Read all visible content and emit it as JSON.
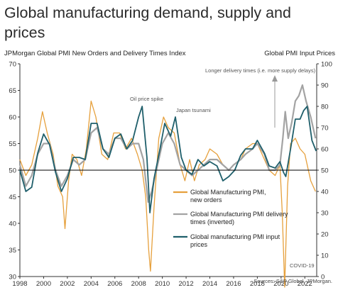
{
  "title": "Global manufacturing demand, supply and prices",
  "left_axis_title": "JPMorgan Global PMI New Orders and Delivery Times Index",
  "right_axis_title": "Global PMI Input Prices",
  "source": "Sources: S&P Global, JPMorgan.",
  "annotations": {
    "longer_delivery": "Longer delivery times (i.e. more supply delays)",
    "oil_spike": "Oil price spike",
    "japan_tsunami": "Japan tsunami",
    "covid": "COVID-19"
  },
  "colors": {
    "new_orders": "#E6A03C",
    "delivery_times": "#A3A3A3",
    "input_prices": "#1F5F6B",
    "axis": "#333333",
    "reference_line": "#000000"
  },
  "chart_data": {
    "type": "line",
    "x_unit": "year",
    "xlim": [
      1998,
      2023
    ],
    "x_ticks": [
      "1998",
      "2000",
      "2002",
      "2004",
      "2006",
      "2008",
      "2010",
      "2012",
      "2014",
      "2016",
      "2018",
      "2020",
      "2022"
    ],
    "left_axis": {
      "ylim": [
        30,
        70
      ],
      "ticks": [
        "30",
        "35",
        "40",
        "45",
        "50",
        "55",
        "60",
        "65",
        "70"
      ]
    },
    "right_axis": {
      "ylim": [
        0,
        100
      ],
      "ticks": [
        "0",
        "10",
        "20",
        "30",
        "40",
        "50",
        "60",
        "70",
        "80",
        "90",
        "100"
      ]
    },
    "reference_line": 50,
    "grid": false,
    "legend_position": "bottom-right",
    "series": [
      {
        "name": "Global Manufacturing PMI, new orders",
        "axis": "left",
        "points": [
          [
            1998,
            52
          ],
          [
            1998.5,
            49
          ],
          [
            1999,
            51
          ],
          [
            1999.5,
            56
          ],
          [
            1999.9,
            61
          ],
          [
            2000.3,
            57
          ],
          [
            2000.8,
            53
          ],
          [
            2001.2,
            47
          ],
          [
            2001.6,
            45
          ],
          [
            2001.8,
            39
          ],
          [
            2002.1,
            48
          ],
          [
            2002.4,
            53
          ],
          [
            2002.8,
            52
          ],
          [
            2003.2,
            49
          ],
          [
            2003.6,
            54
          ],
          [
            2004,
            63
          ],
          [
            2004.4,
            60
          ],
          [
            2004.9,
            53
          ],
          [
            2005.4,
            52
          ],
          [
            2005.9,
            57
          ],
          [
            2006.4,
            57
          ],
          [
            2006.9,
            54
          ],
          [
            2007.4,
            56
          ],
          [
            2007.9,
            53
          ],
          [
            2008.3,
            50
          ],
          [
            2008.6,
            45
          ],
          [
            2008.85,
            35
          ],
          [
            2009.0,
            31
          ],
          [
            2009.3,
            43
          ],
          [
            2009.7,
            56
          ],
          [
            2010.1,
            60
          ],
          [
            2010.5,
            58
          ],
          [
            2011,
            57
          ],
          [
            2011.5,
            51
          ],
          [
            2011.9,
            48
          ],
          [
            2012.3,
            52
          ],
          [
            2012.7,
            48
          ],
          [
            2013.1,
            51
          ],
          [
            2013.6,
            52
          ],
          [
            2014,
            54
          ],
          [
            2014.6,
            53
          ],
          [
            2015.1,
            51
          ],
          [
            2015.6,
            50
          ],
          [
            2016,
            51
          ],
          [
            2016.6,
            52
          ],
          [
            2017,
            54
          ],
          [
            2017.6,
            55
          ],
          [
            2018,
            55
          ],
          [
            2018.6,
            52
          ],
          [
            2019,
            50
          ],
          [
            2019.5,
            49
          ],
          [
            2019.9,
            51
          ],
          [
            2020.1,
            42
          ],
          [
            2020.3,
            28
          ],
          [
            2020.55,
            47
          ],
          [
            2020.8,
            55
          ],
          [
            2021.2,
            56
          ],
          [
            2021.6,
            54
          ],
          [
            2022,
            53
          ],
          [
            2022.5,
            48
          ],
          [
            2022.9,
            46
          ]
        ]
      },
      {
        "name": "Global Manufacturing PMI delivery times (inverted)",
        "axis": "left",
        "points": [
          [
            1998,
            51
          ],
          [
            1998.5,
            47
          ],
          [
            1999,
            49
          ],
          [
            1999.5,
            53
          ],
          [
            2000,
            55
          ],
          [
            2000.5,
            55
          ],
          [
            2001,
            50
          ],
          [
            2001.5,
            47
          ],
          [
            2002,
            49
          ],
          [
            2002.5,
            52
          ],
          [
            2003,
            51
          ],
          [
            2003.5,
            52
          ],
          [
            2004,
            57
          ],
          [
            2004.5,
            58
          ],
          [
            2005,
            54
          ],
          [
            2005.5,
            53
          ],
          [
            2006,
            56
          ],
          [
            2006.5,
            56
          ],
          [
            2007,
            54
          ],
          [
            2007.5,
            55
          ],
          [
            2008,
            55
          ],
          [
            2008.4,
            52
          ],
          [
            2008.8,
            44
          ],
          [
            2009.1,
            46
          ],
          [
            2009.5,
            50
          ],
          [
            2010,
            55
          ],
          [
            2010.5,
            57
          ],
          [
            2011,
            55
          ],
          [
            2011.5,
            51
          ],
          [
            2012,
            50
          ],
          [
            2012.5,
            49
          ],
          [
            2013,
            50
          ],
          [
            2013.5,
            51
          ],
          [
            2014,
            52
          ],
          [
            2014.6,
            52
          ],
          [
            2015.1,
            51
          ],
          [
            2015.6,
            50
          ],
          [
            2016,
            51
          ],
          [
            2016.6,
            52
          ],
          [
            2017,
            53
          ],
          [
            2017.6,
            54
          ],
          [
            2018,
            55
          ],
          [
            2018.6,
            53
          ],
          [
            2019,
            50
          ],
          [
            2019.5,
            50
          ],
          [
            2019.9,
            51
          ],
          [
            2020.15,
            56
          ],
          [
            2020.35,
            61
          ],
          [
            2020.6,
            56
          ],
          [
            2020.9,
            59
          ],
          [
            2021.2,
            63
          ],
          [
            2021.5,
            64
          ],
          [
            2021.8,
            66
          ],
          [
            2022.1,
            63
          ],
          [
            2022.5,
            60
          ],
          [
            2022.9,
            56
          ]
        ]
      },
      {
        "name": "Global manufacturing PMI input prices",
        "axis": "right",
        "points": [
          [
            1998,
            50
          ],
          [
            1998.5,
            40
          ],
          [
            1999,
            42
          ],
          [
            1999.5,
            58
          ],
          [
            2000,
            67
          ],
          [
            2000.5,
            62
          ],
          [
            2001,
            49
          ],
          [
            2001.5,
            40
          ],
          [
            2002,
            46
          ],
          [
            2002.5,
            56
          ],
          [
            2003,
            56
          ],
          [
            2003.5,
            55
          ],
          [
            2004,
            72
          ],
          [
            2004.5,
            72
          ],
          [
            2005,
            60
          ],
          [
            2005.5,
            56
          ],
          [
            2006,
            65
          ],
          [
            2006.5,
            67
          ],
          [
            2007,
            60
          ],
          [
            2007.5,
            64
          ],
          [
            2008,
            75
          ],
          [
            2008.3,
            80
          ],
          [
            2008.7,
            56
          ],
          [
            2008.95,
            30
          ],
          [
            2009.3,
            46
          ],
          [
            2009.8,
            60
          ],
          [
            2010.2,
            72
          ],
          [
            2010.7,
            66
          ],
          [
            2011.1,
            75
          ],
          [
            2011.6,
            56
          ],
          [
            2012,
            50
          ],
          [
            2012.5,
            48
          ],
          [
            2013,
            55
          ],
          [
            2013.5,
            52
          ],
          [
            2014,
            54
          ],
          [
            2014.6,
            52
          ],
          [
            2015.1,
            45
          ],
          [
            2015.6,
            47
          ],
          [
            2016.1,
            50
          ],
          [
            2016.6,
            57
          ],
          [
            2017,
            60
          ],
          [
            2017.6,
            60
          ],
          [
            2018,
            64
          ],
          [
            2018.6,
            58
          ],
          [
            2019,
            52
          ],
          [
            2019.5,
            51
          ],
          [
            2019.9,
            54
          ],
          [
            2020.2,
            49
          ],
          [
            2020.4,
            47
          ],
          [
            2020.8,
            60
          ],
          [
            2021.2,
            74
          ],
          [
            2021.6,
            74
          ],
          [
            2021.9,
            78
          ],
          [
            2022.2,
            80
          ],
          [
            2022.6,
            64
          ],
          [
            2022.95,
            59
          ]
        ]
      }
    ]
  }
}
